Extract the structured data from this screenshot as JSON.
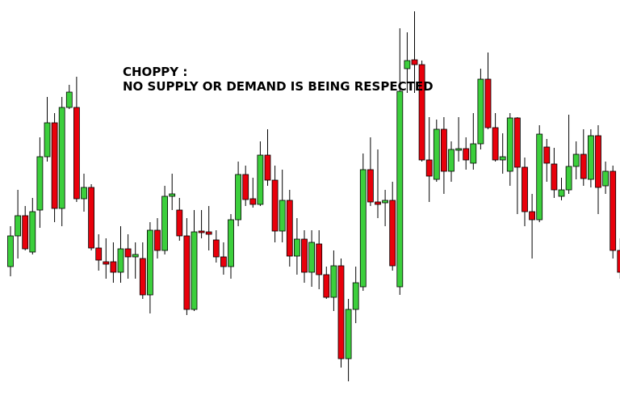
{
  "chart_data": {
    "type": "candlestick",
    "annotations": [
      "CHOPPY :",
      "NO SUPPLY OR DEMAND IS BEING RESPECTED"
    ],
    "up_color": "#3ccf3c",
    "down_color": "#e8000b",
    "ylim": [
      0,
      510
    ],
    "open": [
      180,
      218,
      243,
      198,
      250,
      316,
      358,
      252,
      377,
      377,
      264,
      278,
      203,
      186,
      186,
      173,
      202,
      192,
      190,
      145,
      225,
      200,
      267,
      250,
      218,
      127,
      224,
      223,
      213,
      192,
      180,
      238,
      294,
      264,
      257,
      318,
      287,
      224,
      262,
      193,
      214,
      173,
      208,
      170,
      142,
      181,
      66,
      127,
      155,
      300,
      260,
      259,
      262,
      155,
      425,
      436,
      430,
      312,
      288,
      350,
      298,
      324,
      326,
      308,
      332,
      412,
      352,
      312,
      298,
      364,
      303,
      248,
      238,
      328,
      307,
      267,
      275,
      304,
      319,
      288,
      342,
      280,
      298,
      200
    ],
    "high": [
      230,
      275,
      255,
      265,
      340,
      390,
      370,
      390,
      405,
      415,
      295,
      282,
      220,
      215,
      210,
      230,
      220,
      210,
      210,
      235,
      240,
      280,
      295,
      265,
      240,
      250,
      250,
      255,
      225,
      210,
      245,
      310,
      305,
      290,
      335,
      350,
      305,
      300,
      275,
      240,
      225,
      225,
      225,
      180,
      200,
      190,
      140,
      180,
      320,
      340,
      325,
      275,
      285,
      475,
      470,
      496,
      435,
      365,
      362,
      365,
      335,
      365,
      340,
      370,
      425,
      445,
      370,
      345,
      370,
      365,
      315,
      270,
      355,
      338,
      327,
      290,
      368,
      335,
      350,
      350,
      355,
      310,
      305,
      215
    ],
    "low": [
      168,
      190,
      200,
      195,
      228,
      310,
      235,
      230,
      375,
      260,
      248,
      200,
      175,
      165,
      160,
      160,
      165,
      165,
      140,
      122,
      190,
      195,
      250,
      212,
      120,
      125,
      215,
      200,
      185,
      170,
      165,
      230,
      255,
      253,
      255,
      280,
      210,
      210,
      180,
      170,
      160,
      155,
      152,
      140,
      125,
      55,
      38,
      110,
      150,
      255,
      240,
      230,
      175,
      145,
      395,
      395,
      310,
      260,
      285,
      270,
      285,
      310,
      300,
      300,
      325,
      350,
      310,
      295,
      280,
      245,
      230,
      190,
      235,
      285,
      265,
      262,
      270,
      288,
      280,
      278,
      245,
      270,
      190,
      165
    ],
    "close": [
      218,
      243,
      202,
      248,
      316,
      358,
      252,
      377,
      396,
      264,
      278,
      203,
      188,
      183,
      173,
      202,
      192,
      195,
      145,
      225,
      200,
      267,
      270,
      218,
      127,
      223,
      222,
      220,
      192,
      180,
      238,
      294,
      263,
      257,
      318,
      287,
      224,
      262,
      193,
      214,
      173,
      210,
      170,
      142,
      181,
      66,
      127,
      160,
      300,
      260,
      257,
      262,
      181,
      397,
      435,
      430,
      312,
      292,
      350,
      298,
      325,
      326,
      312,
      332,
      412,
      352,
      312,
      316,
      364,
      303,
      248,
      238,
      344,
      308,
      275,
      275,
      304,
      319,
      289,
      342,
      278,
      298,
      200,
      173
    ]
  }
}
